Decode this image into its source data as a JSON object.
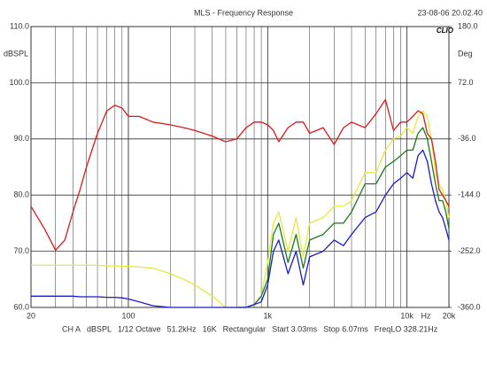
{
  "chart_data": {
    "type": "line",
    "title": "MLS - Frequency Response",
    "timestamp": "23-08-06 20.02.40",
    "logo": "CLIO",
    "y_label": "dBSPL",
    "y2_label": "Deg",
    "x_unit": "Hz",
    "x_scale": "log",
    "grid": true,
    "xlim": [
      20,
      20000
    ],
    "xticks": [
      20,
      100,
      {
        "value": 1000,
        "label": "1k"
      },
      {
        "value": 10000,
        "label": "10k"
      },
      {
        "value": 20000,
        "label": "20k"
      }
    ],
    "ylim": [
      60,
      110
    ],
    "yticks": [
      {
        "value": 60,
        "label": "60.0"
      },
      {
        "value": 70,
        "label": "70.0"
      },
      {
        "value": 80,
        "label": "80.0"
      },
      {
        "value": 90,
        "label": "90.0"
      },
      {
        "value": 100,
        "label": "100.0"
      },
      {
        "value": 110,
        "label": "110.0"
      }
    ],
    "y2lim": [
      -360,
      180
    ],
    "y2ticks": [
      {
        "value": -360,
        "label": "-360.0"
      },
      {
        "value": -252,
        "label": "-252.0"
      },
      {
        "value": -144,
        "label": "-144.0"
      },
      {
        "value": -36,
        "label": "-36.0"
      },
      {
        "value": 72,
        "label": "72.0"
      },
      {
        "value": 180,
        "label": "180.0"
      }
    ],
    "x": [
      20,
      25,
      30,
      35,
      40,
      45,
      50,
      60,
      70,
      80,
      90,
      100,
      120,
      150,
      200,
      250,
      300,
      400,
      500,
      600,
      700,
      800,
      900,
      1000,
      1100,
      1200,
      1400,
      1600,
      1800,
      2000,
      2500,
      3000,
      3500,
      4000,
      5000,
      6000,
      7000,
      8000,
      9000,
      10000,
      11000,
      12000,
      13000,
      14000,
      15000,
      16000,
      17000,
      18000,
      19000,
      20000
    ],
    "series": [
      {
        "color": "#e8e83a",
        "values": [
          67.5,
          67.5,
          67.5,
          67.5,
          67.5,
          67.5,
          67.5,
          67.5,
          67.4,
          67.4,
          67.3,
          67.3,
          67.2,
          67,
          66,
          65,
          64,
          62,
          60,
          60,
          60,
          60.5,
          62,
          68,
          75,
          77,
          70,
          76,
          69,
          75,
          76,
          78,
          78,
          79,
          84,
          84,
          88,
          90,
          90.5,
          92,
          91,
          94,
          95,
          94,
          90,
          84,
          82,
          81,
          79,
          76
        ]
      },
      {
        "color": "#1a7a1a",
        "values": [
          null,
          null,
          null,
          null,
          null,
          null,
          null,
          null,
          null,
          null,
          null,
          null,
          null,
          null,
          null,
          null,
          null,
          null,
          null,
          60,
          60,
          60.5,
          62,
          65,
          73,
          75,
          68,
          73,
          67,
          72,
          73,
          75,
          75,
          77,
          82,
          82,
          85,
          86,
          87,
          88,
          88,
          91,
          92,
          90,
          86,
          82,
          79,
          79,
          77,
          74
        ]
      },
      {
        "color": "#1a1acc",
        "values": [
          62,
          62,
          62,
          62,
          62,
          61.9,
          61.9,
          61.9,
          61.8,
          61.8,
          61.7,
          61.5,
          61,
          60.3,
          60,
          60,
          60,
          60,
          60,
          60,
          60,
          60.5,
          61,
          64,
          70,
          72,
          66,
          70,
          64,
          69,
          70,
          72,
          71,
          73,
          76,
          77,
          80,
          82,
          83,
          84,
          83,
          87,
          88,
          86,
          82,
          79,
          77,
          76,
          74,
          72
        ]
      },
      {
        "color": "#dd1a1a",
        "values": [
          78,
          74,
          70.2,
          72,
          77,
          81,
          85,
          91,
          95,
          96,
          95.5,
          94,
          94,
          93,
          92.5,
          92,
          91.5,
          90.5,
          89.5,
          90,
          92,
          93,
          93,
          92.5,
          91.5,
          89.5,
          92,
          93,
          93,
          91,
          92,
          89,
          92,
          93,
          92,
          94.5,
          97,
          91.5,
          93,
          93,
          94,
          95,
          94.5,
          91,
          90,
          86,
          81,
          80,
          79,
          78
        ]
      }
    ],
    "footer": [
      "CH A",
      "dBSPL",
      "1/12 Octave",
      "51.2kHz",
      "16K",
      "Rectangular",
      "Start 3.03ms",
      "Stop 6.07ms",
      "FreqLO 328.21Hz"
    ]
  }
}
